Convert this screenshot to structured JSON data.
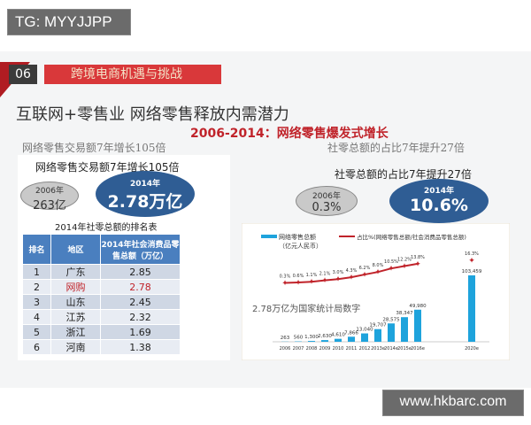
{
  "watermark_top": "TG: MYYJJPP",
  "watermark_bottom": "www.hkbarc.com",
  "section": {
    "number": "06",
    "title": "跨境电商机遇与挑战"
  },
  "title": "互联网+零售业  网络零售释放内需潜力",
  "subtitle": "2006-2014：网络零售爆发式增长",
  "left": {
    "caption": "网络零售交易额7年增长105倍",
    "inner_caption": "网络零售交易额7年增长105倍",
    "from": {
      "year": "2006年",
      "value": "263亿"
    },
    "to": {
      "year": "2014年",
      "value": "2.78万亿"
    },
    "table_title": "2014年社零总额的排名表",
    "table": {
      "headers": [
        "排名",
        "地区",
        "2014年社会消费品零售总额（万亿）"
      ],
      "rows": [
        [
          "1",
          "广东",
          "2.85"
        ],
        [
          "2",
          "网购",
          "2.78"
        ],
        [
          "3",
          "山东",
          "2.45"
        ],
        [
          "4",
          "江苏",
          "2.32"
        ],
        [
          "5",
          "浙江",
          "1.69"
        ],
        [
          "6",
          "河南",
          "1.38"
        ]
      ]
    }
  },
  "right": {
    "caption": "社零总额的占比7年提升27倍",
    "inner_caption": "社零总额的占比7年提升27倍",
    "from": {
      "year": "2006年",
      "value": "0.3%"
    },
    "to": {
      "year": "2014年",
      "value": "10.6%"
    },
    "note": "2.78万亿为国家统计局数字"
  },
  "chart_data": {
    "type": "bar+line",
    "categories": [
      "2006",
      "2007",
      "2008",
      "2009",
      "2010",
      "2011",
      "2012",
      "2013e",
      "2014e",
      "2015e",
      "2016e",
      "2020e"
    ],
    "series": [
      {
        "name": "网络零售总额（亿元人民币）",
        "type": "bar",
        "color": "#1ea3dc",
        "values": [
          263,
          560,
          1300,
          2630,
          4610,
          7866,
          13040,
          19707,
          28575,
          38347,
          49980,
          103459
        ],
        "labels": [
          "263",
          "560",
          "1,300",
          "2,630",
          "4,610",
          "7,866",
          "13,040",
          "19,707",
          "28,575",
          "38,347",
          "49,980",
          "103,459"
        ]
      },
      {
        "name": "占比%(网络零售总额/社会消费品零售总额)",
        "type": "line",
        "color": "#c0232a",
        "values": [
          0.3,
          0.6,
          1.1,
          2.1,
          3.0,
          4.3,
          6.2,
          8.0,
          10.5,
          12.2,
          13.8,
          16.3
        ],
        "labels": [
          "0.3%",
          "0.6%",
          "1.1%",
          "2.1%",
          "3.0%",
          "4.3%",
          "6.2%",
          "8.0%",
          "10.5%",
          "12.2%",
          "13.8%",
          "16.3%"
        ]
      }
    ],
    "legend": "top",
    "legend_bar_line1": "网络零售总额",
    "legend_bar_line2": "（亿元人民币）",
    "legend_line": "占比%(网络零售总额/社会消费品零售总额)"
  }
}
